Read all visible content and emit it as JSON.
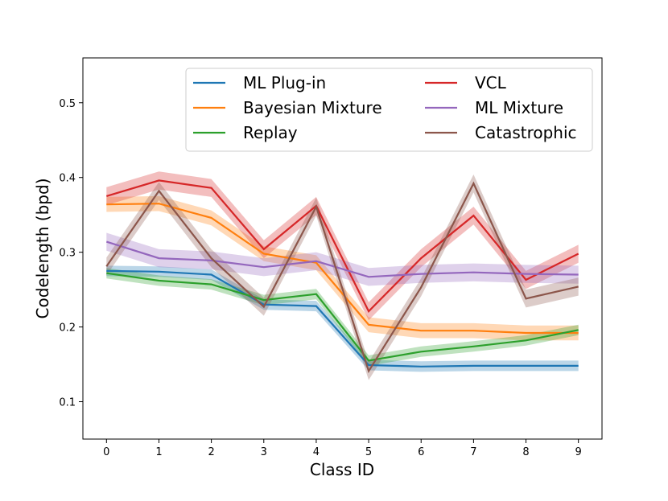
{
  "chart_data": {
    "type": "line",
    "title": "",
    "xlabel": "Class ID",
    "ylabel": "Codelength (bpd)",
    "x": [
      0,
      1,
      2,
      3,
      4,
      5,
      6,
      7,
      8,
      9
    ],
    "x_ticks": [
      "0",
      "1",
      "2",
      "3",
      "4",
      "5",
      "6",
      "7",
      "8",
      "9"
    ],
    "y_ticks": [
      "0.1",
      "0.2",
      "0.3",
      "0.4",
      "0.5"
    ],
    "xlim": [
      -0.45,
      9.45
    ],
    "ylim": [
      0.05,
      0.56
    ],
    "grid": false,
    "legend_position": "top-right",
    "series": [
      {
        "name": "ML Plug-in",
        "color": "#1f77b4",
        "band": 0.007,
        "values": [
          0.275,
          0.274,
          0.27,
          0.23,
          0.228,
          0.149,
          0.147,
          0.148,
          0.148,
          0.148
        ]
      },
      {
        "name": "Bayesian Mixture",
        "color": "#ff7f0e",
        "band": 0.01,
        "values": [
          0.364,
          0.365,
          0.346,
          0.298,
          0.286,
          0.203,
          0.195,
          0.195,
          0.192,
          0.192
        ]
      },
      {
        "name": "Replay",
        "color": "#2ca02c",
        "band": 0.007,
        "values": [
          0.272,
          0.262,
          0.257,
          0.236,
          0.244,
          0.155,
          0.167,
          0.174,
          0.182,
          0.196
        ]
      },
      {
        "name": "VCL",
        "color": "#d62728",
        "band": 0.012,
        "values": [
          0.375,
          0.396,
          0.386,
          0.304,
          0.362,
          0.221,
          0.292,
          0.349,
          0.263,
          0.298
        ]
      },
      {
        "name": "ML Mixture",
        "color": "#9467bd",
        "band": 0.012,
        "values": [
          0.314,
          0.292,
          0.289,
          0.28,
          0.288,
          0.267,
          0.271,
          0.273,
          0.271,
          0.27
        ]
      },
      {
        "name": "Catastrophic",
        "color": "#8c564b",
        "band": 0.012,
        "values": [
          0.281,
          0.382,
          0.292,
          0.227,
          0.361,
          0.141,
          0.253,
          0.392,
          0.238,
          0.254
        ]
      }
    ]
  }
}
